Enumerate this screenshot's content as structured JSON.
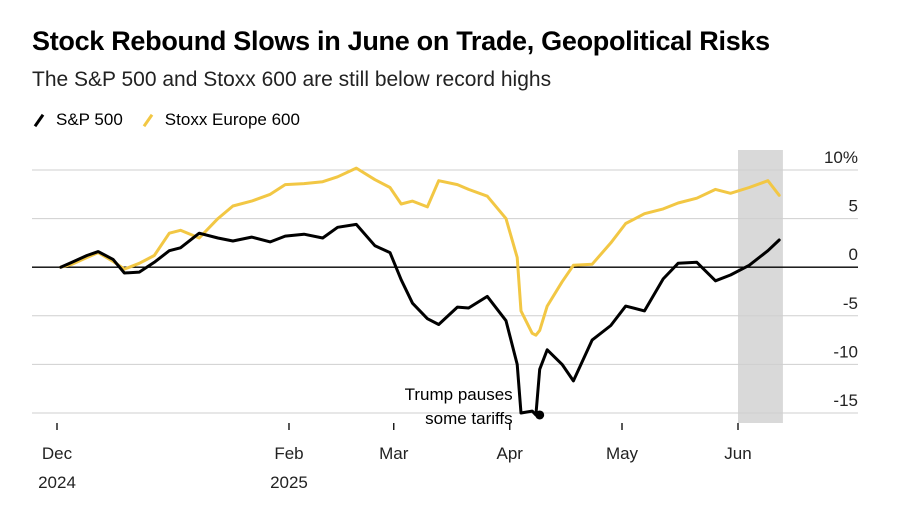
{
  "title": "Stock Rebound Slows in June on Trade, Geopolitical Risks",
  "subtitle": "The S&P 500 and Stoxx 600 are still below record highs",
  "legend": [
    {
      "label": "S&P 500",
      "color": "#000000"
    },
    {
      "label": "Stoxx Europe 600",
      "color": "#f2c744"
    }
  ],
  "chart_data": {
    "type": "line",
    "ylim": [
      -15,
      10
    ],
    "y_ticks": [
      10,
      5,
      0,
      -5,
      -10,
      -15
    ],
    "y_tick_labels": [
      "10%",
      "5",
      "0",
      "-5",
      "-10",
      "-15"
    ],
    "x_tick_labels": [
      {
        "label": "Dec",
        "sublabel": "2024",
        "date": "2024-12-01"
      },
      {
        "label": "Feb",
        "sublabel": "2025",
        "date": "2025-02-01"
      },
      {
        "label": "Mar",
        "sublabel": "",
        "date": "2025-03-01"
      },
      {
        "label": "Apr",
        "sublabel": "",
        "date": "2025-04-01"
      },
      {
        "label": "May",
        "sublabel": "",
        "date": "2025-05-01"
      },
      {
        "label": "Jun",
        "sublabel": "",
        "date": "2025-06-01"
      }
    ],
    "shaded_region": {
      "start": "2025-06-01",
      "end": "2025-06-13",
      "color": "#d9d9d9"
    },
    "annotation": {
      "text_lines": [
        "Trump pauses",
        "some tariffs"
      ],
      "date": "2025-04-09",
      "y": -15.2
    },
    "series": [
      {
        "name": "Stoxx Europe 600",
        "color": "#f2c744",
        "dates": [
          "2024-12-02",
          "2024-12-05",
          "2024-12-09",
          "2024-12-12",
          "2024-12-16",
          "2024-12-19",
          "2024-12-23",
          "2024-12-27",
          "2024-12-31",
          "2025-01-03",
          "2025-01-08",
          "2025-01-13",
          "2025-01-17",
          "2025-01-22",
          "2025-01-27",
          "2025-01-31",
          "2025-02-05",
          "2025-02-10",
          "2025-02-14",
          "2025-02-19",
          "2025-02-24",
          "2025-02-28",
          "2025-03-03",
          "2025-03-06",
          "2025-03-10",
          "2025-03-13",
          "2025-03-18",
          "2025-03-21",
          "2025-03-26",
          "2025-03-31",
          "2025-04-03",
          "2025-04-04",
          "2025-04-07",
          "2025-04-08",
          "2025-04-09",
          "2025-04-11",
          "2025-04-15",
          "2025-04-18",
          "2025-04-23",
          "2025-04-28",
          "2025-05-02",
          "2025-05-07",
          "2025-05-12",
          "2025-05-16",
          "2025-05-21",
          "2025-05-26",
          "2025-05-30",
          "2025-06-04",
          "2025-06-09",
          "2025-06-12"
        ],
        "values": [
          0.0,
          0.3,
          1.0,
          1.5,
          0.6,
          -0.2,
          0.4,
          1.2,
          3.5,
          3.8,
          3.0,
          5.0,
          6.3,
          6.8,
          7.5,
          8.5,
          8.6,
          8.8,
          9.3,
          10.2,
          9.0,
          8.2,
          6.5,
          6.8,
          6.2,
          8.9,
          8.5,
          8.0,
          7.3,
          5.0,
          1.0,
          -4.5,
          -6.8,
          -7.0,
          -6.5,
          -4.0,
          -1.5,
          0.2,
          0.3,
          2.5,
          4.5,
          5.5,
          6.0,
          6.6,
          7.1,
          8.0,
          7.6,
          8.2,
          8.9,
          7.4
        ]
      },
      {
        "name": "S&P 500",
        "color": "#000000",
        "dates": [
          "2024-12-02",
          "2024-12-05",
          "2024-12-09",
          "2024-12-12",
          "2024-12-16",
          "2024-12-19",
          "2024-12-23",
          "2024-12-27",
          "2024-12-31",
          "2025-01-03",
          "2025-01-08",
          "2025-01-13",
          "2025-01-17",
          "2025-01-22",
          "2025-01-27",
          "2025-01-31",
          "2025-02-05",
          "2025-02-10",
          "2025-02-14",
          "2025-02-19",
          "2025-02-24",
          "2025-02-28",
          "2025-03-03",
          "2025-03-06",
          "2025-03-10",
          "2025-03-13",
          "2025-03-18",
          "2025-03-21",
          "2025-03-26",
          "2025-03-31",
          "2025-04-03",
          "2025-04-04",
          "2025-04-07",
          "2025-04-08",
          "2025-04-09",
          "2025-04-11",
          "2025-04-15",
          "2025-04-18",
          "2025-04-23",
          "2025-04-28",
          "2025-05-02",
          "2025-05-07",
          "2025-05-12",
          "2025-05-16",
          "2025-05-21",
          "2025-05-26",
          "2025-05-30",
          "2025-06-04",
          "2025-06-09",
          "2025-06-12"
        ],
        "values": [
          0.0,
          0.5,
          1.2,
          1.6,
          0.8,
          -0.6,
          -0.5,
          0.5,
          1.7,
          2.0,
          3.5,
          3.0,
          2.7,
          3.1,
          2.6,
          3.2,
          3.4,
          3.0,
          4.1,
          4.4,
          2.2,
          1.5,
          -1.3,
          -3.7,
          -5.3,
          -5.9,
          -4.1,
          -4.2,
          -3.0,
          -5.5,
          -10.0,
          -15.0,
          -14.8,
          -15.2,
          -10.5,
          -8.5,
          -10.0,
          -11.7,
          -7.5,
          -6.0,
          -4.0,
          -4.5,
          -1.2,
          0.4,
          0.5,
          -1.4,
          -0.8,
          0.2,
          1.7,
          2.8
        ]
      }
    ]
  }
}
